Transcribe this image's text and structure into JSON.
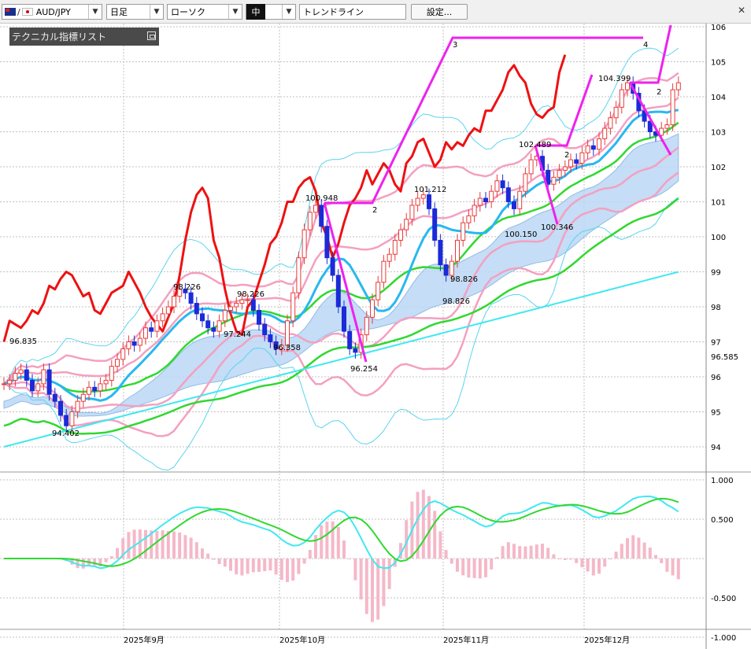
{
  "toolbar": {
    "symbol": "AUD/JPY",
    "timeframe": "日足",
    "chart_style": "ローソク",
    "line_width": "中",
    "drawing_tool": "トレンドライン",
    "settings_label": "設定..."
  },
  "indicator_panel": {
    "title": "テクニカル指標リスト"
  },
  "icons": {
    "symbol_flags": "au-jp-flag-icons",
    "dropdown": "chevron-down-icon",
    "panel_button": "restore-icon",
    "close": "close-icon"
  },
  "colors": {
    "macd": "#40e8f0",
    "signal": "#30d830",
    "histogram": "#f5b8c8",
    "price_line": "#ee1111",
    "bull_candle": "#e83a3a",
    "bear_candle": "#1b2bd8",
    "wave_lines": "#ee22ee"
  },
  "chart_data": [
    {
      "type": "candlestick",
      "y_axis_labels": [
        "106",
        "105",
        "104",
        "103",
        "102",
        "101",
        "100",
        "99",
        "98",
        "97",
        "96",
        "95",
        "94"
      ],
      "current_price_label": "96.585",
      "x_axis_labels": [
        "2025年9月",
        "2025年10月",
        "2025年11月",
        "2025年12月"
      ],
      "price_annotations": [
        "96.835",
        "94.402",
        "98.226",
        "98.226",
        "97.244",
        "96.358",
        "100.948",
        "96.254",
        "101.212",
        "98.826",
        "98.826",
        "100.150",
        "102.489",
        "100.346",
        "104.399"
      ],
      "wave_labels": [
        "2",
        "3",
        "2",
        "4",
        "2"
      ],
      "closes": [
        95.8,
        95.9,
        96.1,
        96.2,
        95.9,
        95.6,
        95.8,
        96.2,
        95.5,
        95.3,
        94.9,
        94.6,
        95.0,
        95.3,
        95.5,
        95.7,
        95.6,
        95.8,
        95.9,
        96.3,
        96.5,
        96.8,
        97.0,
        96.9,
        97.1,
        97.4,
        97.3,
        97.6,
        97.8,
        98.0,
        98.3,
        98.5,
        98.4,
        98.1,
        97.8,
        97.6,
        97.4,
        97.3,
        97.6,
        97.9,
        98.0,
        98.1,
        98.2,
        98.2,
        97.9,
        97.5,
        97.2,
        97.0,
        96.8,
        96.9,
        97.6,
        98.4,
        99.4,
        100.2,
        100.7,
        100.9,
        100.3,
        99.4,
        98.9,
        98.0,
        97.3,
        96.8,
        96.7,
        97.2,
        97.7,
        98.2,
        98.7,
        99.3,
        99.5,
        99.9,
        100.2,
        100.5,
        100.9,
        101.1,
        101.2,
        100.8,
        99.9,
        99.2,
        98.9,
        99.3,
        99.9,
        100.4,
        100.6,
        100.9,
        101.1,
        101.0,
        101.3,
        101.6,
        101.4,
        101.0,
        100.8,
        101.3,
        101.8,
        102.2,
        102.3,
        101.9,
        101.5,
        101.7,
        101.9,
        102.0,
        102.2,
        102.1,
        102.4,
        102.6,
        102.5,
        102.8,
        103.1,
        103.4,
        103.7,
        104.2,
        104.4,
        104.1,
        103.6,
        103.3,
        103.0,
        102.9,
        103.1,
        103.2,
        104.2,
        104.4
      ]
    },
    {
      "type": "line",
      "y_axis_labels": [
        "1.000",
        "0.500",
        "-0.500",
        "-1.000"
      ],
      "series": []
    }
  ]
}
